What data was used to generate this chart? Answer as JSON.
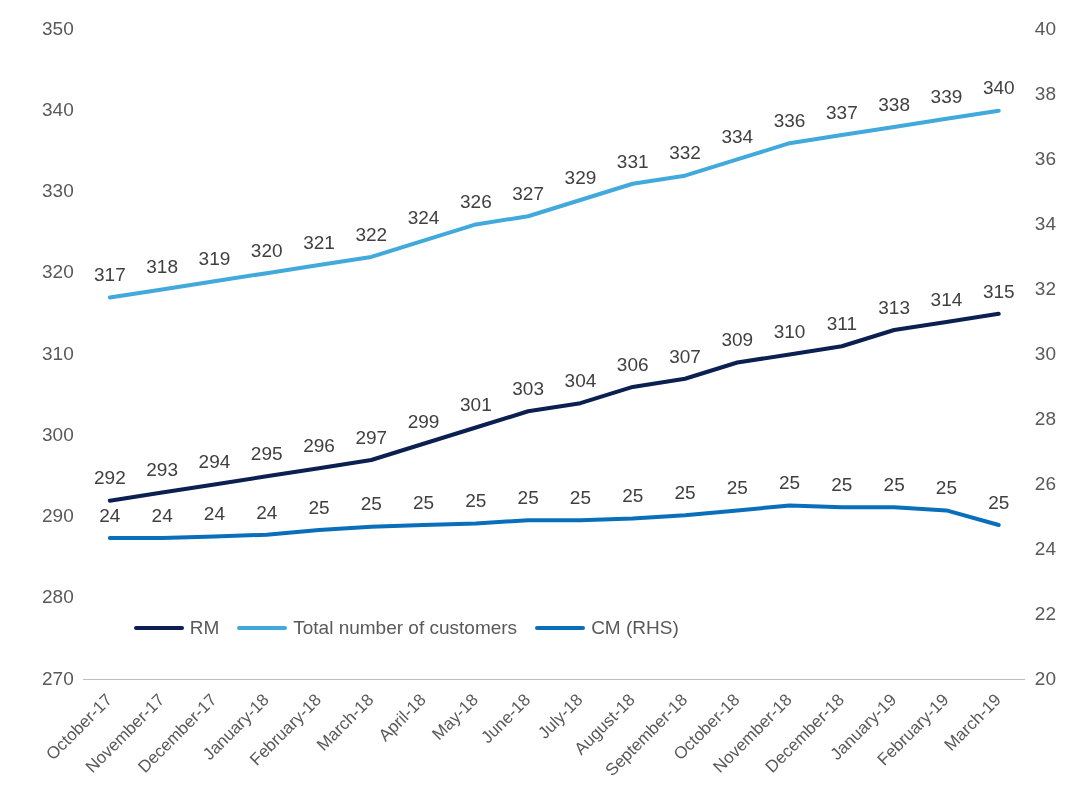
{
  "chart_data": {
    "type": "line",
    "categories": [
      "October-17",
      "November-17",
      "December-17",
      "January-18",
      "February-18",
      "March-18",
      "April-18",
      "May-18",
      "June-18",
      "July-18",
      "August-18",
      "September-18",
      "October-18",
      "November-18",
      "December-18",
      "January-19",
      "February-19",
      "March-19"
    ],
    "series": [
      {
        "name": "RM",
        "color": "#0b1f51",
        "values": [
          292,
          293,
          294,
          295,
          296,
          297,
          299,
          301,
          303,
          304,
          306,
          307,
          309,
          310,
          311,
          313,
          314,
          315
        ],
        "value_labels": [
          "292",
          "293",
          "294",
          "295",
          "296",
          "297",
          "299",
          "301",
          "303",
          "304",
          "306",
          "307",
          "309",
          "310",
          "311",
          "313",
          "314",
          "315"
        ]
      },
      {
        "name": "Total number of customers",
        "color": "#41a9dc",
        "values": [
          317,
          318,
          319,
          320,
          321,
          322,
          324,
          326,
          327,
          329,
          331,
          332,
          334,
          336,
          337,
          338,
          339,
          340
        ],
        "value_labels": [
          "317",
          "318",
          "319",
          "320",
          "321",
          "322",
          "324",
          "326",
          "327",
          "329",
          "331",
          "332",
          "334",
          "336",
          "337",
          "338",
          "339",
          "340"
        ]
      },
      {
        "name": "CM (RHS)",
        "color": "#0a6fba",
        "axis": "y2",
        "values": [
          24.35,
          24.35,
          24.4,
          24.45,
          24.6,
          24.7,
          24.75,
          24.8,
          24.9,
          24.9,
          24.95,
          25.05,
          25.2,
          25.35,
          25.3,
          25.3,
          25.2,
          24.75
        ],
        "value_labels": [
          "24",
          "24",
          "24",
          "24",
          "25",
          "25",
          "25",
          "25",
          "25",
          "25",
          "25",
          "25",
          "25",
          "25",
          "25",
          "25",
          "25",
          "25"
        ]
      }
    ],
    "ylim": [
      270,
      350
    ],
    "yticks": [
      270,
      280,
      290,
      300,
      310,
      320,
      330,
      340,
      350
    ],
    "y2lim": [
      20,
      40
    ],
    "y2ticks": [
      20,
      22,
      24,
      26,
      28,
      30,
      32,
      34,
      36,
      38,
      40
    ],
    "grid": false,
    "legend": "bottom",
    "marker": "none",
    "line_style": "solid"
  }
}
